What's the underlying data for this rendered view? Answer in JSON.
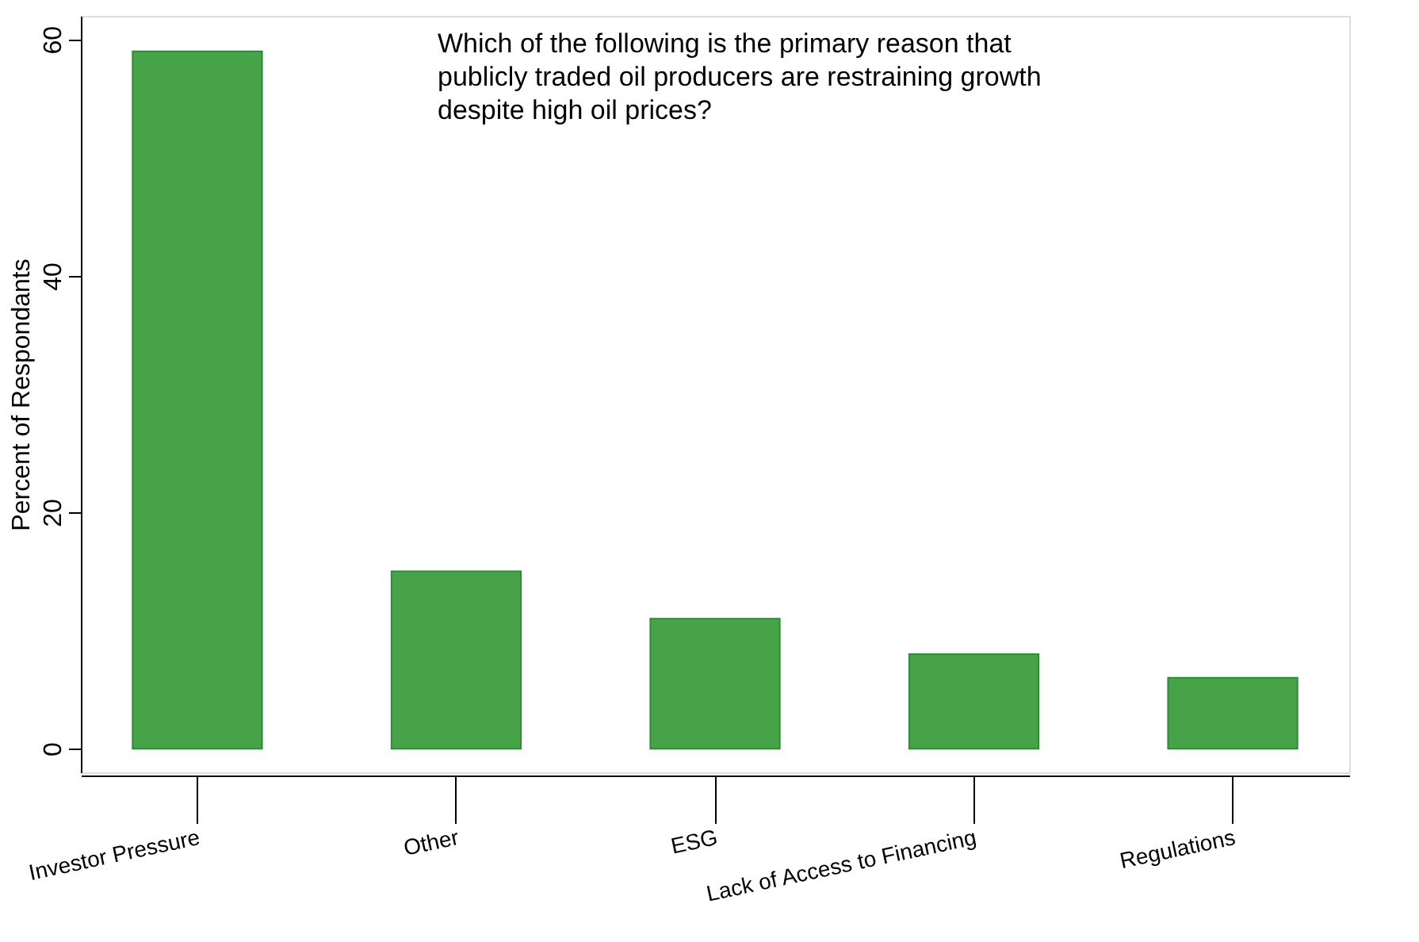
{
  "chart_data": {
    "type": "bar",
    "title": "Which of the following is the primary reason that publicly traded oil producers are restraining growth despite high oil prices?",
    "ylabel": "Percent of Respondants",
    "categories": [
      "Investor Pressure",
      "Other",
      "ESG",
      "Lack of Access to Financing",
      "Regulations"
    ],
    "values": [
      59,
      15,
      11,
      8,
      6
    ],
    "color": "#46a348",
    "ylim": [
      -2,
      62
    ],
    "yticks": [
      0,
      20,
      40,
      60
    ],
    "grid": false
  }
}
